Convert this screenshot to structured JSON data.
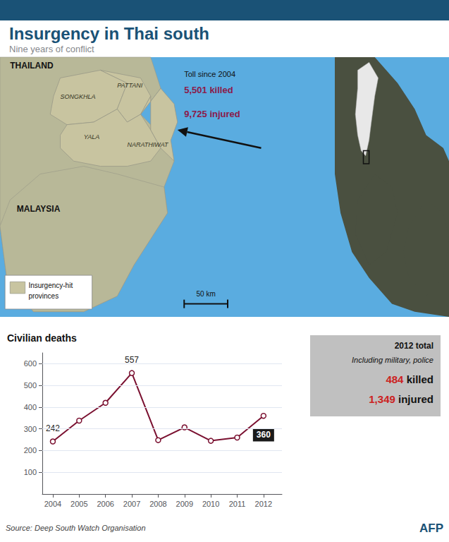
{
  "title": "Insurgency in Thai south",
  "subtitle": "Nine years of conflict",
  "title_color": "#1a5276",
  "map": {
    "countries": [
      "THAILAND",
      "MALAYSIA"
    ],
    "provinces": [
      "SONGKHLA",
      "PATTANI",
      "YALA",
      "NARATHIWAT"
    ],
    "sea_color": "#5aace0",
    "land_color": "#b8b898",
    "province_color": "#c8c4a0",
    "inset_land_color": "#4a5040",
    "inset_highlight_color": "#e8e8e8",
    "legend_lines": [
      "Insurgency-hit",
      "provinces"
    ],
    "scale_label": "50 km"
  },
  "toll": {
    "title": "Toll since 2004",
    "lines": [
      "5,501 killed",
      "9,725 injured"
    ],
    "color": "#8b1a4a"
  },
  "chart_data": {
    "type": "line",
    "title": "Civilian deaths",
    "x": [
      2004,
      2005,
      2006,
      2007,
      2008,
      2009,
      2010,
      2011,
      2012
    ],
    "values": [
      242,
      338,
      420,
      557,
      248,
      307,
      245,
      260,
      360
    ],
    "color": "#7a1030",
    "marker": "circle",
    "xlim": [
      2003.6,
      2012.7
    ],
    "xticks": [
      2004,
      2005,
      2006,
      2007,
      2008,
      2009,
      2010,
      2011,
      2012
    ],
    "ylim": [
      0,
      650
    ],
    "yticks": [
      100,
      200,
      300,
      400,
      500,
      600
    ],
    "grid": true,
    "annotations": [
      {
        "x": 2004,
        "y": 242,
        "text": "242"
      },
      {
        "x": 2007,
        "y": 557,
        "text": "557"
      },
      {
        "x": 2012,
        "y": 360,
        "text": "360",
        "color": "#1a1a1a"
      }
    ]
  },
  "info_box": {
    "title": "2012 total",
    "note": "Including military, police",
    "rows": [
      {
        "number": "484",
        "label": "killed"
      },
      {
        "number": "1,349",
        "label": "injured"
      }
    ],
    "number_color": "#cc2222",
    "color": "#c0c0c0"
  },
  "source": "Source: Deep South Watch Organisation",
  "credit": "AFP"
}
